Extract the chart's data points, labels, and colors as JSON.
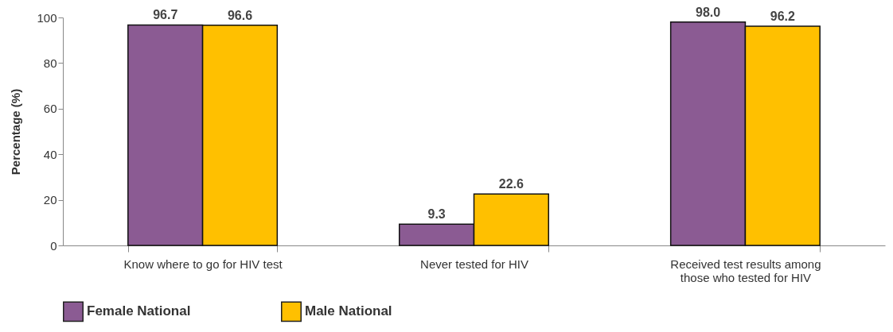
{
  "chart_data": {
    "type": "bar",
    "ylabel": "Percentage (%)",
    "categories": [
      "Know where to go for HIV test",
      "Never tested for HIV",
      "Received test results among those who tested for HIV"
    ],
    "series": [
      {
        "name": "Female National",
        "color": "#8b5b93",
        "values": [
          96.7,
          9.3,
          98.0
        ],
        "value_labels": [
          "96.7",
          "9.3",
          "98.0"
        ]
      },
      {
        "name": "Male National",
        "color": "#ffc000",
        "values": [
          96.6,
          22.6,
          96.2
        ],
        "value_labels": [
          "96.6",
          "22.6",
          "96.2"
        ]
      }
    ],
    "ylim": [
      0,
      100
    ],
    "yticks": [
      0,
      20,
      40,
      60,
      80,
      100
    ],
    "grid": false,
    "legend": "bottom left"
  }
}
